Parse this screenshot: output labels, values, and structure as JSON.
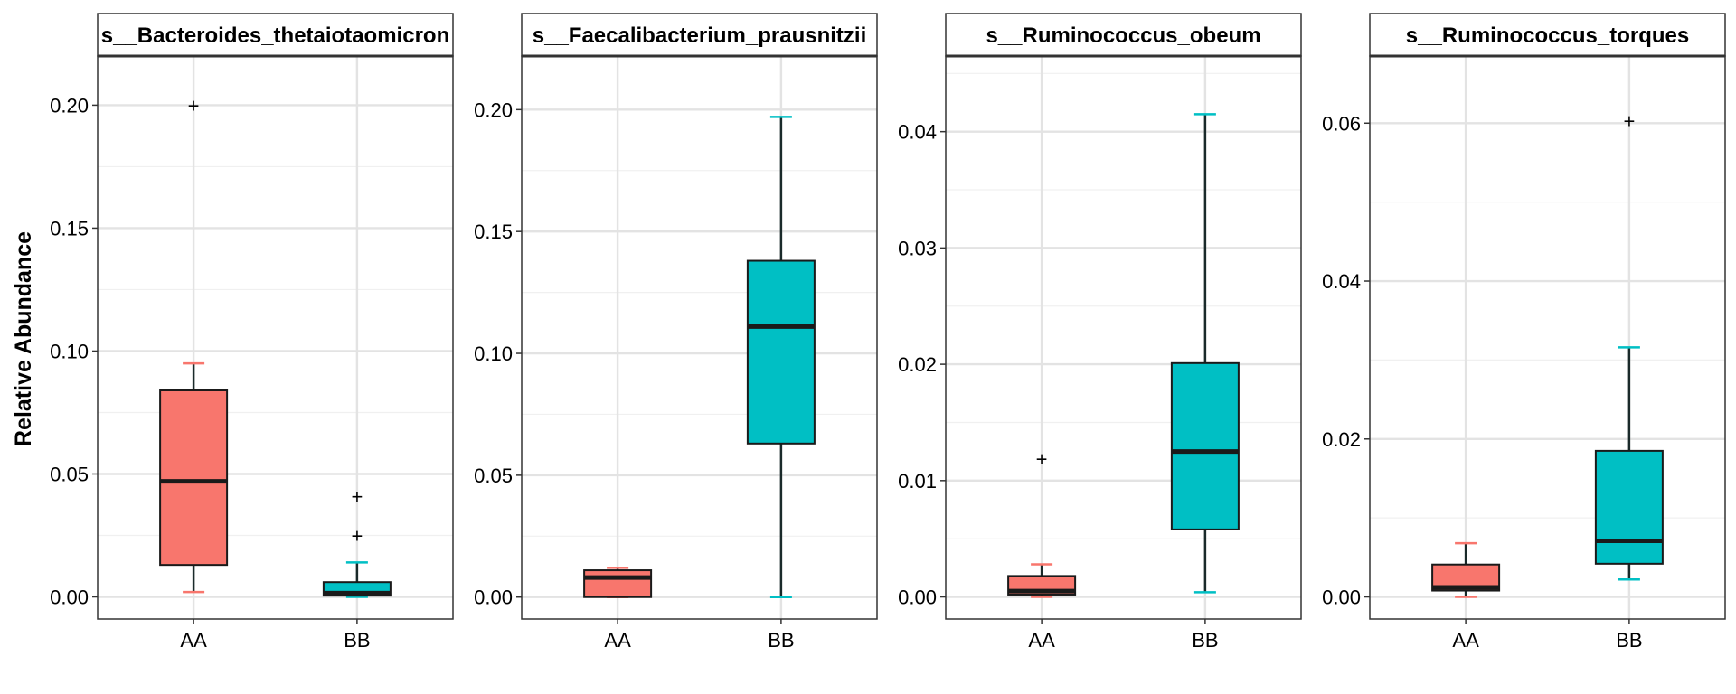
{
  "chart_data": {
    "type": "box",
    "ylabel": "Relative Abundance",
    "groups": [
      "AA",
      "BB"
    ],
    "group_colors": {
      "AA": "#F8766D",
      "BB": "#00BFC4"
    },
    "outlier_glyph": "+",
    "panels": [
      {
        "title": "s__Bacteroides_thetaiotaomicron",
        "ylim": [
          -0.009,
          0.22
        ],
        "yticks": [
          0.0,
          0.05,
          0.1,
          0.15,
          0.2
        ],
        "ytick_labels": [
          "0.00",
          "0.05",
          "0.10",
          "0.15",
          "0.20"
        ],
        "boxes": [
          {
            "group": "AA",
            "whisker_low": 0.002,
            "q1": 0.013,
            "median": 0.047,
            "q3": 0.084,
            "whisker_high": 0.095,
            "outliers": [
              0.2
            ]
          },
          {
            "group": "BB",
            "whisker_low": 0.0,
            "q1": 0.0005,
            "median": 0.0015,
            "q3": 0.006,
            "whisker_high": 0.014,
            "outliers": [
              0.025,
              0.041
            ]
          }
        ]
      },
      {
        "title": "s__Faecalibacterium_prausnitzii",
        "ylim": [
          -0.009,
          0.222
        ],
        "yticks": [
          0.0,
          0.05,
          0.1,
          0.15,
          0.2
        ],
        "ytick_labels": [
          "0.00",
          "0.05",
          "0.10",
          "0.15",
          "0.20"
        ],
        "boxes": [
          {
            "group": "AA",
            "whisker_low": 0.0,
            "q1": 0.0,
            "median": 0.008,
            "q3": 0.011,
            "whisker_high": 0.012,
            "outliers": []
          },
          {
            "group": "BB",
            "whisker_low": 0.0,
            "q1": 0.063,
            "median": 0.111,
            "q3": 0.138,
            "whisker_high": 0.197,
            "outliers": []
          }
        ]
      },
      {
        "title": "s__Ruminococcus_obeum",
        "ylim": [
          -0.0019,
          0.0465
        ],
        "yticks": [
          0.0,
          0.01,
          0.02,
          0.03,
          0.04
        ],
        "ytick_labels": [
          "0.00",
          "0.01",
          "0.02",
          "0.03",
          "0.04"
        ],
        "boxes": [
          {
            "group": "AA",
            "whisker_low": 0.0,
            "q1": 0.0002,
            "median": 0.0005,
            "q3": 0.0018,
            "whisker_high": 0.0028,
            "outliers": [
              0.0119
            ]
          },
          {
            "group": "BB",
            "whisker_low": 0.0004,
            "q1": 0.0058,
            "median": 0.0125,
            "q3": 0.0201,
            "whisker_high": 0.0415,
            "outliers": []
          }
        ]
      },
      {
        "title": "s__Ruminococcus_torques",
        "ylim": [
          -0.0028,
          0.0685
        ],
        "yticks": [
          0.0,
          0.02,
          0.04,
          0.06
        ],
        "ytick_labels": [
          "0.00",
          "0.02",
          "0.04",
          "0.06"
        ],
        "boxes": [
          {
            "group": "AA",
            "whisker_low": 0.0,
            "q1": 0.0008,
            "median": 0.0012,
            "q3": 0.0041,
            "whisker_high": 0.0068,
            "outliers": []
          },
          {
            "group": "BB",
            "whisker_low": 0.0022,
            "q1": 0.0042,
            "median": 0.0071,
            "q3": 0.0185,
            "whisker_high": 0.0316,
            "outliers": [
              0.0603
            ]
          }
        ]
      }
    ]
  }
}
